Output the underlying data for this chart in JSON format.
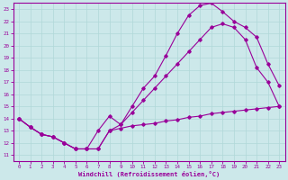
{
  "xlabel": "Windchill (Refroidissement éolien,°C)",
  "bg_color": "#cce8ea",
  "line_color": "#990099",
  "grid_color": "#b0d8d8",
  "xlim": [
    -0.5,
    23.5
  ],
  "ylim": [
    10.5,
    23.5
  ],
  "xticks": [
    0,
    1,
    2,
    3,
    4,
    5,
    6,
    7,
    8,
    9,
    10,
    11,
    12,
    13,
    14,
    15,
    16,
    17,
    18,
    19,
    20,
    21,
    22,
    23
  ],
  "yticks": [
    11,
    12,
    13,
    14,
    15,
    16,
    17,
    18,
    19,
    20,
    21,
    22,
    23
  ],
  "line1_x": [
    0,
    1,
    2,
    3,
    4,
    5,
    6,
    7,
    8,
    9,
    10,
    11,
    12,
    13,
    14,
    15,
    16,
    17,
    18,
    19,
    20,
    21,
    22,
    23
  ],
  "line1_y": [
    14.0,
    13.3,
    12.7,
    12.5,
    12.0,
    11.5,
    11.5,
    11.5,
    13.0,
    13.2,
    13.4,
    13.5,
    13.6,
    13.8,
    13.9,
    14.1,
    14.2,
    14.4,
    14.5,
    14.6,
    14.7,
    14.8,
    14.9,
    15.0
  ],
  "line2_x": [
    0,
    1,
    2,
    3,
    4,
    5,
    6,
    7,
    8,
    9,
    10,
    11,
    12,
    13,
    14,
    15,
    16,
    17,
    18,
    19,
    20,
    21,
    22,
    23
  ],
  "line2_y": [
    14.0,
    13.3,
    12.7,
    12.5,
    12.0,
    11.5,
    11.5,
    11.5,
    13.0,
    13.5,
    15.0,
    16.5,
    17.5,
    19.2,
    21.0,
    22.5,
    23.3,
    23.5,
    22.8,
    22.0,
    21.5,
    20.7,
    18.5,
    16.7
  ],
  "line3_x": [
    0,
    1,
    2,
    3,
    4,
    5,
    6,
    7,
    8,
    9,
    10,
    11,
    12,
    13,
    14,
    15,
    16,
    17,
    18,
    19,
    20,
    21,
    22,
    23
  ],
  "line3_y": [
    14.0,
    13.3,
    12.7,
    12.5,
    12.0,
    11.5,
    11.5,
    13.0,
    14.2,
    13.5,
    14.5,
    15.5,
    16.5,
    17.5,
    18.5,
    19.5,
    20.5,
    21.5,
    21.8,
    21.5,
    20.5,
    18.2,
    17.0,
    15.0
  ]
}
